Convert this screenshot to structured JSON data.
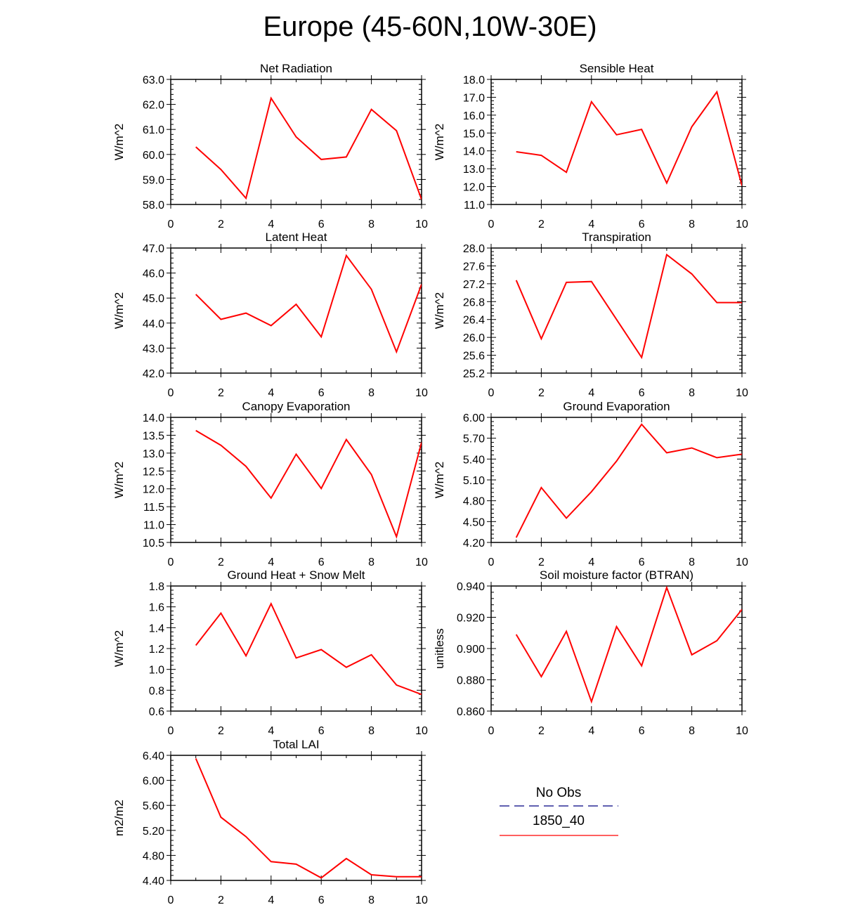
{
  "title": "Europe (45-60N,10W-30E)",
  "colors": {
    "series": "#ff0000",
    "obs": "#000080",
    "axis": "#000000"
  },
  "legend": {
    "obs_label": "No Obs",
    "model_label": "1850_40"
  },
  "chart_data": [
    {
      "type": "line",
      "title": "Net Radiation",
      "ylabel": "W/m^2",
      "xlim": [
        0,
        10
      ],
      "xticks": [
        "0",
        "2",
        "4",
        "6",
        "8",
        "10"
      ],
      "ylim": [
        58.0,
        63.0
      ],
      "yticks": [
        "58.0",
        "59.0",
        "60.0",
        "61.0",
        "62.0",
        "63.0"
      ],
      "x": [
        1,
        2,
        3,
        4,
        5,
        6,
        7,
        8,
        9,
        10
      ],
      "values": [
        60.3,
        59.4,
        58.25,
        62.25,
        60.7,
        59.8,
        59.9,
        61.8,
        60.95,
        58.2
      ]
    },
    {
      "type": "line",
      "title": "Sensible Heat",
      "ylabel": "W/m^2",
      "xlim": [
        0,
        10
      ],
      "xticks": [
        "0",
        "2",
        "4",
        "6",
        "8",
        "10"
      ],
      "ylim": [
        11.0,
        18.0
      ],
      "yticks": [
        "11.0",
        "12.0",
        "13.0",
        "14.0",
        "15.0",
        "16.0",
        "17.0",
        "18.0"
      ],
      "x": [
        1,
        2,
        3,
        4,
        5,
        6,
        7,
        8,
        9,
        10
      ],
      "values": [
        13.95,
        13.75,
        12.8,
        16.75,
        14.9,
        15.2,
        12.2,
        15.35,
        17.3,
        12.05
      ]
    },
    {
      "type": "line",
      "title": "Latent Heat",
      "ylabel": "W/m^2",
      "xlim": [
        0,
        10
      ],
      "xticks": [
        "0",
        "2",
        "4",
        "6",
        "8",
        "10"
      ],
      "ylim": [
        42.0,
        47.0
      ],
      "yticks": [
        "42.0",
        "43.0",
        "44.0",
        "45.0",
        "46.0",
        "47.0"
      ],
      "x": [
        1,
        2,
        3,
        4,
        5,
        6,
        7,
        8,
        9,
        10
      ],
      "values": [
        45.15,
        44.15,
        44.4,
        43.9,
        44.75,
        43.45,
        46.7,
        45.35,
        42.85,
        45.55
      ]
    },
    {
      "type": "line",
      "title": "Transpiration",
      "ylabel": "W/m^2",
      "xlim": [
        0,
        10
      ],
      "xticks": [
        "0",
        "2",
        "4",
        "6",
        "8",
        "10"
      ],
      "ylim": [
        25.2,
        28.0
      ],
      "yticks": [
        "25.2",
        "25.6",
        "26.0",
        "26.4",
        "26.8",
        "27.2",
        "27.6",
        "28.0"
      ],
      "x": [
        1,
        2,
        3,
        4,
        5,
        6,
        7,
        8,
        9,
        10
      ],
      "values": [
        27.28,
        25.97,
        27.23,
        27.25,
        26.4,
        25.55,
        27.85,
        27.42,
        26.78,
        26.78
      ]
    },
    {
      "type": "line",
      "title": "Canopy Evaporation",
      "ylabel": "W/m^2",
      "xlim": [
        0,
        10
      ],
      "xticks": [
        "0",
        "2",
        "4",
        "6",
        "8",
        "10"
      ],
      "ylim": [
        10.5,
        14.0
      ],
      "yticks": [
        "10.5",
        "11.0",
        "11.5",
        "12.0",
        "12.5",
        "13.0",
        "13.5",
        "14.0"
      ],
      "x": [
        1,
        2,
        3,
        4,
        5,
        6,
        7,
        8,
        9,
        10
      ],
      "values": [
        13.63,
        13.22,
        12.63,
        11.74,
        12.97,
        12.01,
        13.38,
        12.4,
        10.66,
        13.3
      ]
    },
    {
      "type": "line",
      "title": "Ground Evaporation",
      "ylabel": "W/m^2",
      "xlim": [
        0,
        10
      ],
      "xticks": [
        "0",
        "2",
        "4",
        "6",
        "8",
        "10"
      ],
      "ylim": [
        4.2,
        6.0
      ],
      "yticks": [
        "4.20",
        "4.50",
        "4.80",
        "5.10",
        "5.40",
        "5.70",
        "6.00"
      ],
      "x": [
        1,
        2,
        3,
        4,
        5,
        6,
        7,
        8,
        9,
        10
      ],
      "values": [
        4.27,
        4.99,
        4.55,
        4.93,
        5.37,
        5.9,
        5.49,
        5.56,
        5.42,
        5.47
      ]
    },
    {
      "type": "line",
      "title": "Ground Heat + Snow Melt",
      "ylabel": "W/m^2",
      "xlim": [
        0,
        10
      ],
      "xticks": [
        "0",
        "2",
        "4",
        "6",
        "8",
        "10"
      ],
      "ylim": [
        0.6,
        1.8
      ],
      "yticks": [
        "0.6",
        "0.8",
        "1.0",
        "1.2",
        "1.4",
        "1.6",
        "1.8"
      ],
      "x": [
        1,
        2,
        3,
        4,
        5,
        6,
        7,
        8,
        9,
        10
      ],
      "values": [
        1.23,
        1.54,
        1.13,
        1.63,
        1.11,
        1.19,
        1.02,
        1.14,
        0.85,
        0.76
      ]
    },
    {
      "type": "line",
      "title": "Soil moisture factor (BTRAN)",
      "ylabel": "unitless",
      "xlim": [
        0,
        10
      ],
      "xticks": [
        "0",
        "2",
        "4",
        "6",
        "8",
        "10"
      ],
      "ylim": [
        0.86,
        0.94
      ],
      "yticks": [
        "0.860",
        "0.880",
        "0.900",
        "0.920",
        "0.940"
      ],
      "x": [
        1,
        2,
        3,
        4,
        5,
        6,
        7,
        8,
        9,
        10
      ],
      "values": [
        0.909,
        0.882,
        0.911,
        0.866,
        0.914,
        0.889,
        0.939,
        0.896,
        0.905,
        0.925
      ]
    },
    {
      "type": "line",
      "title": "Total LAI",
      "ylabel": "m2/m2",
      "xlim": [
        0,
        10
      ],
      "xticks": [
        "0",
        "2",
        "4",
        "6",
        "8",
        "10"
      ],
      "ylim": [
        4.4,
        6.4
      ],
      "yticks": [
        "4.40",
        "4.80",
        "5.20",
        "5.60",
        "6.00",
        "6.40"
      ],
      "x": [
        1,
        2,
        3,
        4,
        5,
        6,
        7,
        8,
        9,
        10
      ],
      "values": [
        6.35,
        5.41,
        5.1,
        4.7,
        4.66,
        4.44,
        4.75,
        4.49,
        4.46,
        4.46
      ]
    }
  ]
}
